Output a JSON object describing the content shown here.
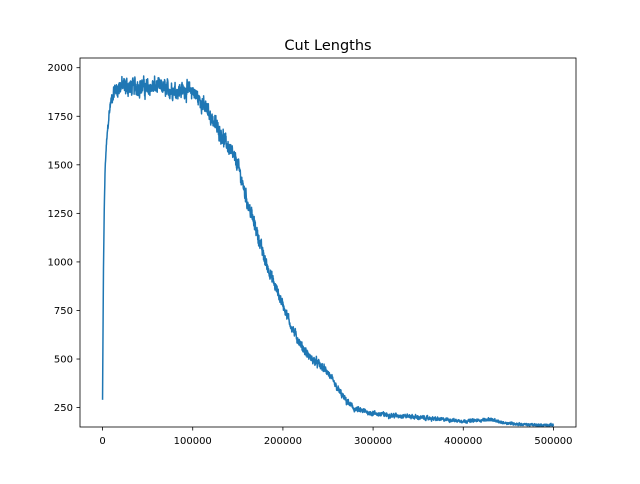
{
  "chart_data": {
    "type": "line",
    "title": "Cut Lengths",
    "xlabel": "",
    "ylabel": "",
    "xlim": [
      -25000,
      525000
    ],
    "ylim": [
      150,
      2050
    ],
    "x_ticks": [
      0,
      100000,
      200000,
      300000,
      400000,
      500000
    ],
    "x_tick_labels": [
      "0",
      "100000",
      "200000",
      "300000",
      "400000",
      "500000"
    ],
    "y_ticks": [
      250,
      500,
      750,
      1000,
      1250,
      1500,
      1750,
      2000
    ],
    "y_tick_labels": [
      "250",
      "500",
      "750",
      "1000",
      "1250",
      "1500",
      "1750",
      "2000"
    ],
    "grid": false,
    "legend": "none",
    "series": [
      {
        "color": "#1f77b4",
        "points": [
          [
            0,
            290
          ],
          [
            1000,
            950
          ],
          [
            2000,
            1300
          ],
          [
            3000,
            1500
          ],
          [
            5000,
            1650
          ],
          [
            7000,
            1750
          ],
          [
            9000,
            1820
          ],
          [
            12000,
            1870
          ],
          [
            16000,
            1895
          ],
          [
            20000,
            1905
          ],
          [
            30000,
            1900
          ],
          [
            40000,
            1905
          ],
          [
            50000,
            1895
          ],
          [
            60000,
            1905
          ],
          [
            70000,
            1890
          ],
          [
            80000,
            1885
          ],
          [
            90000,
            1885
          ],
          [
            100000,
            1880
          ],
          [
            110000,
            1820
          ],
          [
            120000,
            1750
          ],
          [
            130000,
            1670
          ],
          [
            140000,
            1590
          ],
          [
            150000,
            1500
          ],
          [
            160000,
            1320
          ],
          [
            170000,
            1170
          ],
          [
            180000,
            1010
          ],
          [
            190000,
            890
          ],
          [
            200000,
            780
          ],
          [
            210000,
            660
          ],
          [
            220000,
            570
          ],
          [
            230000,
            505
          ],
          [
            240000,
            475
          ],
          [
            250000,
            430
          ],
          [
            260000,
            350
          ],
          [
            270000,
            285
          ],
          [
            280000,
            240
          ],
          [
            290000,
            230
          ],
          [
            300000,
            220
          ],
          [
            320000,
            210
          ],
          [
            340000,
            205
          ],
          [
            360000,
            195
          ],
          [
            380000,
            188
          ],
          [
            400000,
            180
          ],
          [
            420000,
            185
          ],
          [
            430000,
            190
          ],
          [
            440000,
            175
          ],
          [
            460000,
            165
          ],
          [
            480000,
            160
          ],
          [
            500000,
            160
          ]
        ],
        "noise": [
          [
            0,
            0
          ],
          [
            1000,
            10
          ],
          [
            10000,
            30
          ],
          [
            20000,
            45
          ],
          [
            100000,
            40
          ],
          [
            160000,
            35
          ],
          [
            200000,
            25
          ],
          [
            250000,
            18
          ],
          [
            300000,
            12
          ],
          [
            400000,
            8
          ],
          [
            500000,
            6
          ]
        ]
      }
    ]
  }
}
